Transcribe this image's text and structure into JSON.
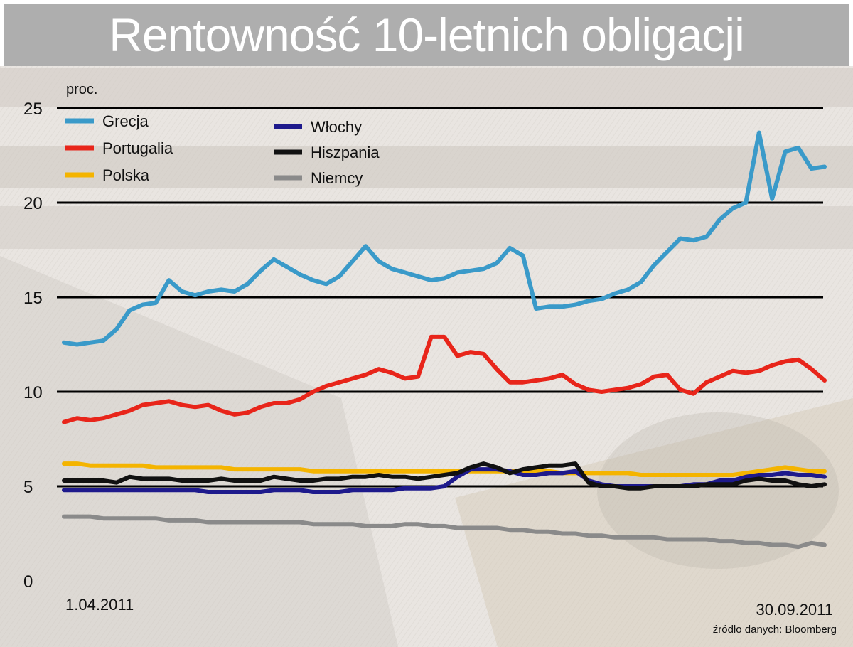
{
  "title": "Rentowność 10-letnich obligacji",
  "source": "źródło danych: Bloomberg",
  "chart_data": {
    "type": "line",
    "title": "Rentowność 10-letnich obligacji",
    "ylabel": "proc.",
    "xlabel": "",
    "ylim": [
      0,
      25
    ],
    "yticks": [
      0,
      5,
      10,
      15,
      20,
      25
    ],
    "x_tick_labels": [
      "1.04.2011",
      "30.09.2011"
    ],
    "grid": true,
    "legend": "top-left, two columns",
    "series": [
      {
        "name": "Grecja",
        "color": "#3a9ac9",
        "values": [
          12.6,
          12.5,
          12.6,
          12.7,
          13.3,
          14.3,
          14.6,
          14.7,
          15.9,
          15.3,
          15.1,
          15.3,
          15.4,
          15.3,
          15.7,
          16.4,
          17.0,
          16.6,
          16.2,
          15.9,
          15.7,
          16.1,
          16.9,
          17.7,
          16.9,
          16.5,
          16.3,
          16.1,
          15.9,
          16.0,
          16.3,
          16.4,
          16.5,
          16.8,
          17.6,
          17.2,
          14.4,
          14.5,
          14.5,
          14.6,
          14.8,
          14.9,
          15.2,
          15.4,
          15.8,
          16.7,
          17.4,
          18.1,
          18.0,
          18.2,
          19.1,
          19.7,
          20.0,
          23.7,
          20.2,
          22.7,
          22.9,
          21.8,
          21.9
        ]
      },
      {
        "name": "Portugalia",
        "color": "#e8251a",
        "values": [
          8.4,
          8.6,
          8.5,
          8.6,
          8.8,
          9.0,
          9.3,
          9.4,
          9.5,
          9.3,
          9.2,
          9.3,
          9.0,
          8.8,
          8.9,
          9.2,
          9.4,
          9.4,
          9.6,
          10.0,
          10.3,
          10.5,
          10.7,
          10.9,
          11.2,
          11.0,
          10.7,
          10.8,
          12.9,
          12.9,
          11.9,
          12.1,
          12.0,
          11.2,
          10.5,
          10.5,
          10.6,
          10.7,
          10.9,
          10.4,
          10.1,
          10.0,
          10.1,
          10.2,
          10.4,
          10.8,
          10.9,
          10.1,
          9.9,
          10.5,
          10.8,
          11.1,
          11.0,
          11.1,
          11.4,
          11.6,
          11.7,
          11.2,
          10.6
        ]
      },
      {
        "name": "Polska",
        "color": "#f4b400",
        "values": [
          6.2,
          6.2,
          6.1,
          6.1,
          6.1,
          6.1,
          6.1,
          6.0,
          6.0,
          6.0,
          6.0,
          6.0,
          6.0,
          5.9,
          5.9,
          5.9,
          5.9,
          5.9,
          5.9,
          5.8,
          5.8,
          5.8,
          5.8,
          5.8,
          5.8,
          5.8,
          5.8,
          5.8,
          5.8,
          5.8,
          5.8,
          5.8,
          5.8,
          5.8,
          5.8,
          5.8,
          5.8,
          5.8,
          5.7,
          5.7,
          5.7,
          5.7,
          5.7,
          5.7,
          5.6,
          5.6,
          5.6,
          5.6,
          5.6,
          5.6,
          5.6,
          5.6,
          5.7,
          5.8,
          5.9,
          6.0,
          5.9,
          5.8,
          5.8
        ]
      },
      {
        "name": "Włochy",
        "color": "#1e1a8c",
        "values": [
          4.8,
          4.8,
          4.8,
          4.8,
          4.8,
          4.8,
          4.8,
          4.8,
          4.8,
          4.8,
          4.8,
          4.7,
          4.7,
          4.7,
          4.7,
          4.7,
          4.8,
          4.8,
          4.8,
          4.7,
          4.7,
          4.7,
          4.8,
          4.8,
          4.8,
          4.8,
          4.9,
          4.9,
          4.9,
          5.0,
          5.5,
          5.9,
          5.9,
          5.9,
          5.8,
          5.6,
          5.6,
          5.7,
          5.7,
          5.8,
          5.3,
          5.1,
          5.0,
          5.0,
          5.0,
          5.0,
          5.0,
          5.0,
          5.1,
          5.1,
          5.3,
          5.3,
          5.5,
          5.6,
          5.6,
          5.7,
          5.6,
          5.6,
          5.5
        ]
      },
      {
        "name": "Hiszpania",
        "color": "#111111",
        "values": [
          5.3,
          5.3,
          5.3,
          5.3,
          5.2,
          5.5,
          5.4,
          5.4,
          5.4,
          5.3,
          5.3,
          5.3,
          5.4,
          5.3,
          5.3,
          5.3,
          5.5,
          5.4,
          5.3,
          5.3,
          5.4,
          5.4,
          5.5,
          5.5,
          5.6,
          5.5,
          5.5,
          5.4,
          5.5,
          5.6,
          5.7,
          6.0,
          6.2,
          6.0,
          5.7,
          5.9,
          6.0,
          6.1,
          6.1,
          6.2,
          5.2,
          5.0,
          5.0,
          4.9,
          4.9,
          5.0,
          5.0,
          5.0,
          5.0,
          5.1,
          5.1,
          5.1,
          5.3,
          5.4,
          5.3,
          5.3,
          5.1,
          5.0,
          5.1
        ]
      },
      {
        "name": "Niemcy",
        "color": "#8a8a8a",
        "values": [
          3.4,
          3.4,
          3.4,
          3.3,
          3.3,
          3.3,
          3.3,
          3.3,
          3.2,
          3.2,
          3.2,
          3.1,
          3.1,
          3.1,
          3.1,
          3.1,
          3.1,
          3.1,
          3.1,
          3.0,
          3.0,
          3.0,
          3.0,
          2.9,
          2.9,
          2.9,
          3.0,
          3.0,
          2.9,
          2.9,
          2.8,
          2.8,
          2.8,
          2.8,
          2.7,
          2.7,
          2.6,
          2.6,
          2.5,
          2.5,
          2.4,
          2.4,
          2.3,
          2.3,
          2.3,
          2.3,
          2.2,
          2.2,
          2.2,
          2.2,
          2.1,
          2.1,
          2.0,
          2.0,
          1.9,
          1.9,
          1.8,
          2.0,
          1.9
        ]
      }
    ]
  }
}
